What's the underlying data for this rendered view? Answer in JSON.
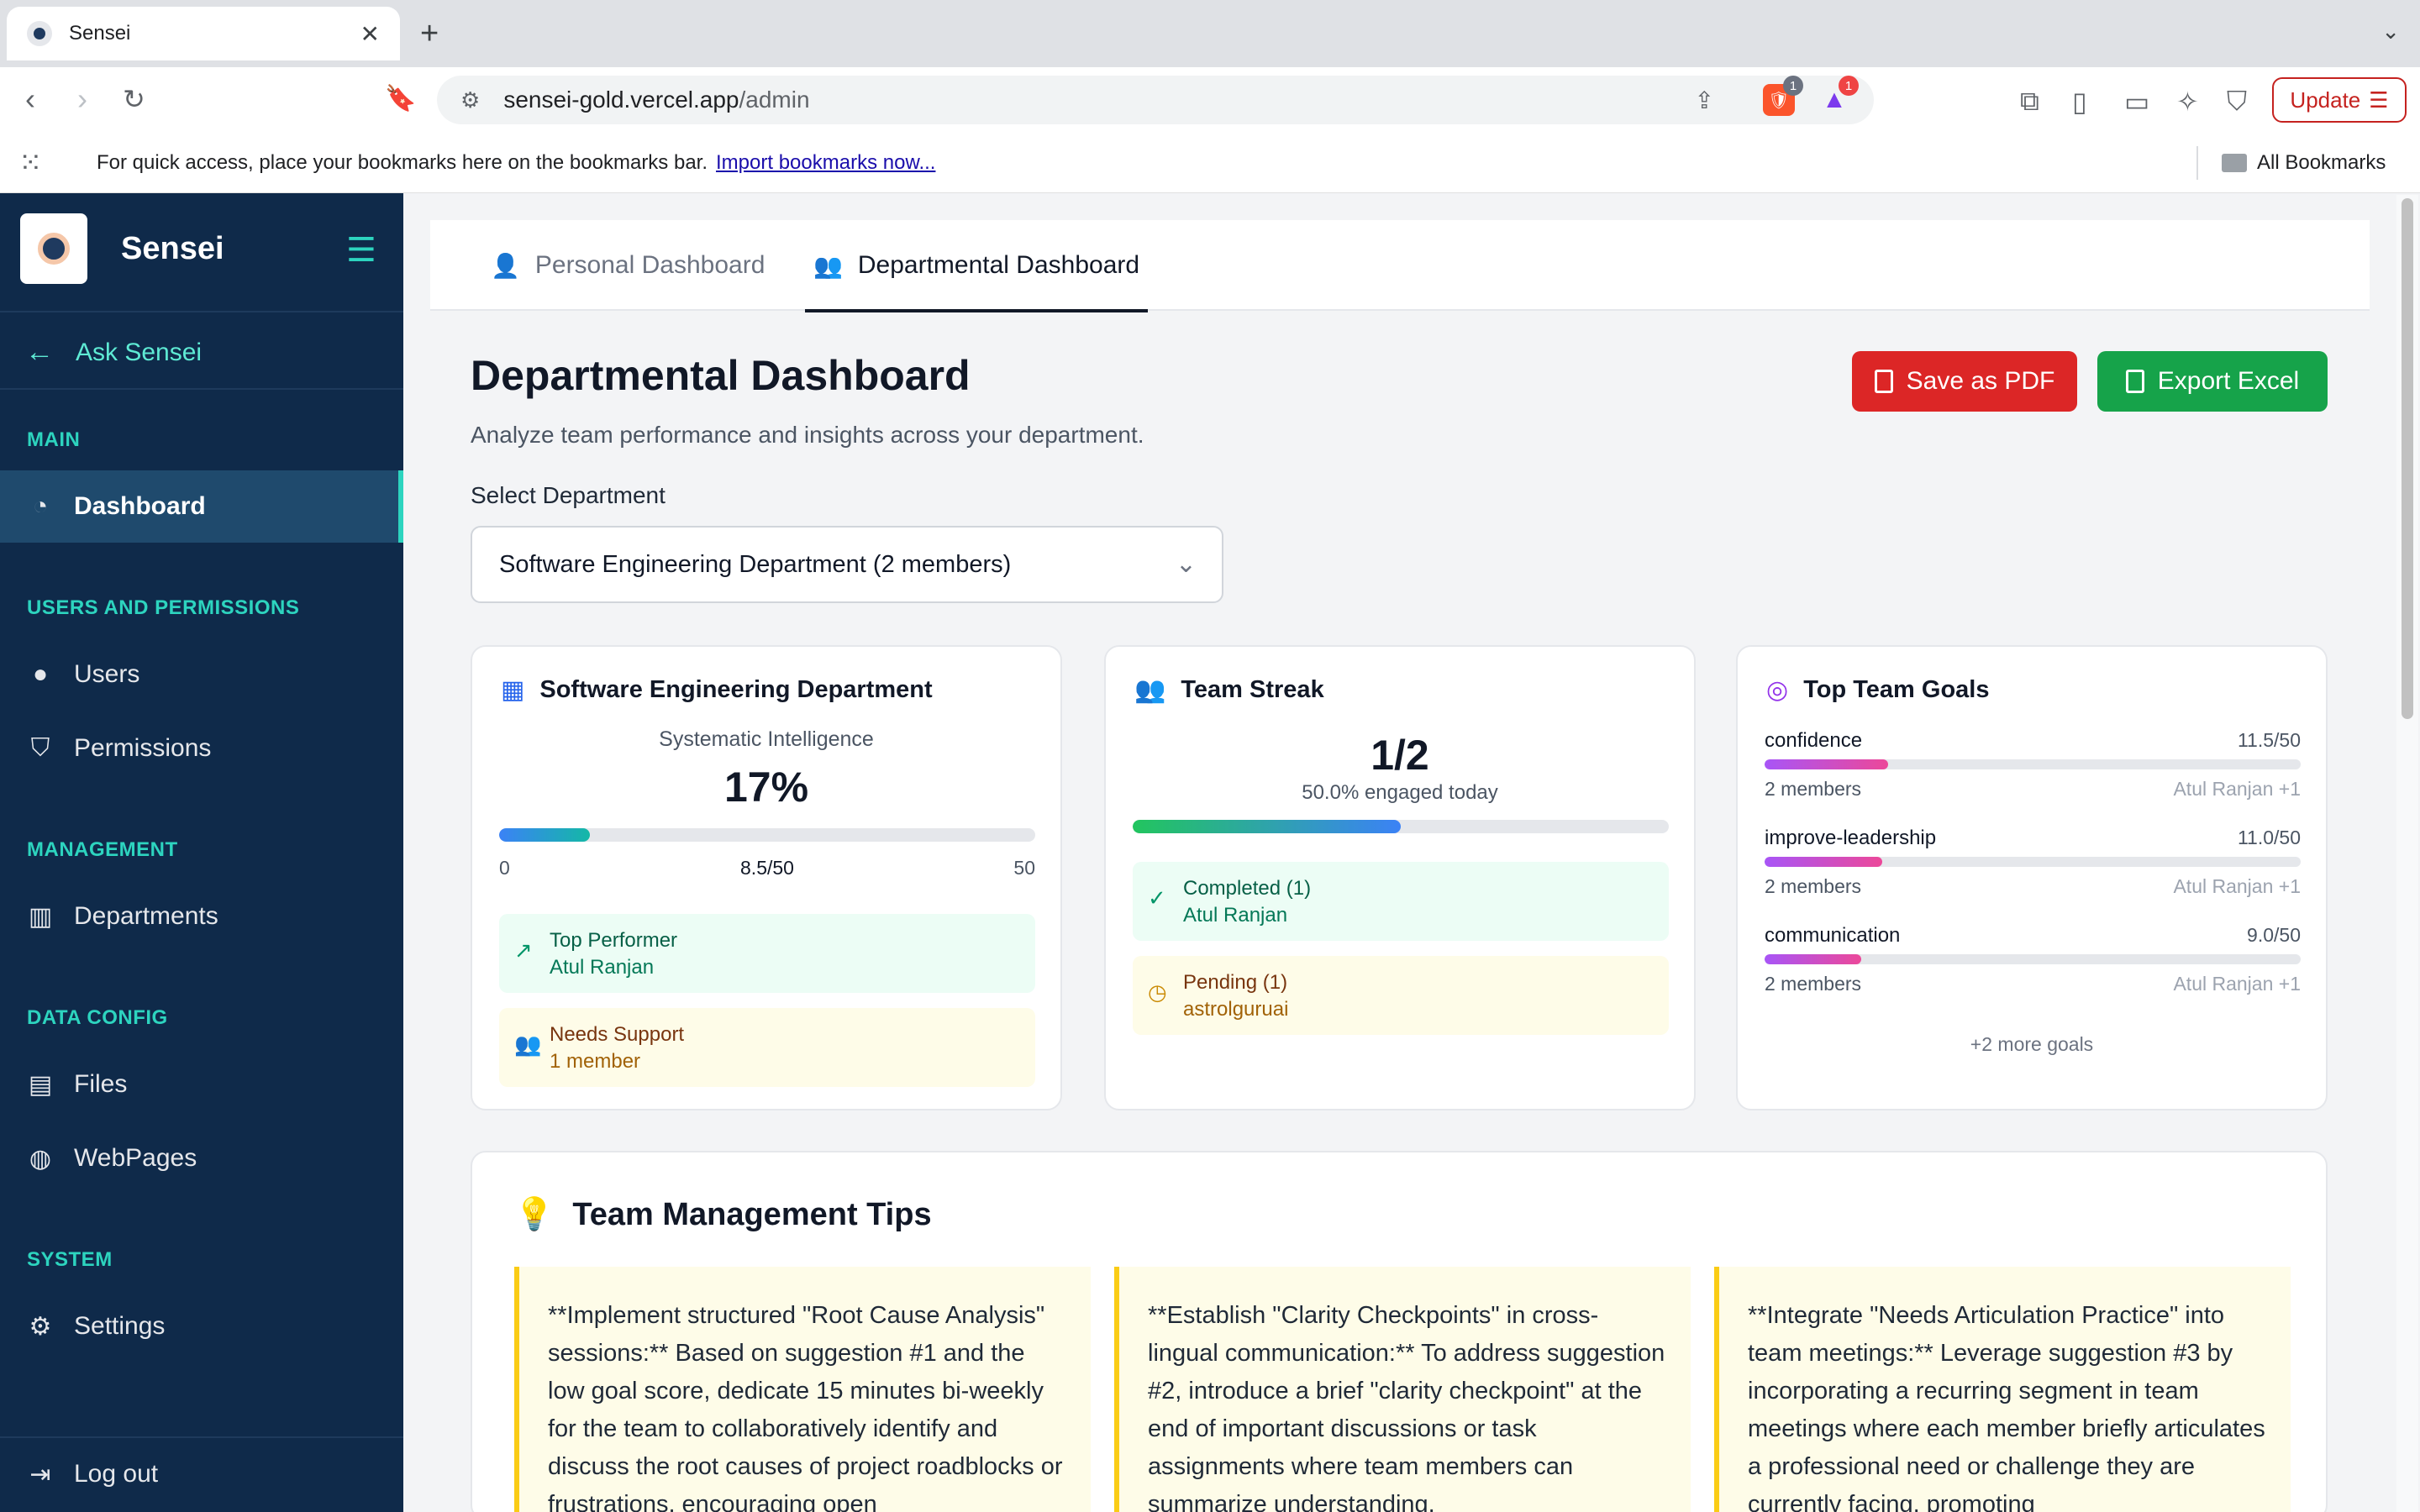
{
  "browser": {
    "tab_title": "Sensei",
    "url_host": "sensei-gold.vercel.app",
    "url_path": "/admin",
    "update_label": "Update",
    "bookmarks_message": "For quick access, place your bookmarks here on the bookmarks bar.",
    "import_link": "Import bookmarks now...",
    "all_bookmarks": "All Bookmarks",
    "brave_badge": "1",
    "rewards_badge": "1"
  },
  "sidebar": {
    "brand": "Sensei",
    "ask": "Ask Sensei",
    "sections": {
      "main": "MAIN",
      "users": "USERS AND PERMISSIONS",
      "management": "MANAGEMENT",
      "data": "DATA CONFIG",
      "system": "SYSTEM"
    },
    "items": {
      "dashboard": "Dashboard",
      "users": "Users",
      "permissions": "Permissions",
      "departments": "Departments",
      "files": "Files",
      "webpages": "WebPages",
      "settings": "Settings",
      "logout": "Log out"
    }
  },
  "tabs": {
    "personal": "Personal Dashboard",
    "departmental": "Departmental Dashboard"
  },
  "page": {
    "title": "Departmental Dashboard",
    "subtitle": "Analyze team performance and insights across your department.",
    "save_pdf": "Save as PDF",
    "export_excel": "Export Excel",
    "select_label": "Select Department",
    "selected_department": "Software Engineering Department (2 members)"
  },
  "dept_card": {
    "title": "Software Engineering Department",
    "metric_label": "Systematic Intelligence",
    "percent": "17%",
    "progress_fraction": 0.17,
    "scale_min": "0",
    "scale_value": "8.5/50",
    "scale_max": "50",
    "top_performer_label": "Top Performer",
    "top_performer_name": "Atul Ranjan",
    "needs_support_label": "Needs Support",
    "needs_support_count": "1 member"
  },
  "streak_card": {
    "title": "Team Streak",
    "ratio": "1/2",
    "engaged": "50.0% engaged today",
    "progress_fraction": 0.5,
    "completed_label": "Completed (1)",
    "completed_name": "Atul Ranjan",
    "pending_label": "Pending (1)",
    "pending_name": "astrolguruai"
  },
  "goals_card": {
    "title": "Top Team Goals",
    "goals": [
      {
        "name": "confidence",
        "score": "11.5/50",
        "fraction": 0.23,
        "members": "2 members",
        "who": "Atul Ranjan +1"
      },
      {
        "name": "improve-leadership",
        "score": "11.0/50",
        "fraction": 0.22,
        "members": "2 members",
        "who": "Atul Ranjan +1"
      },
      {
        "name": "communication",
        "score": "9.0/50",
        "fraction": 0.18,
        "members": "2 members",
        "who": "Atul Ranjan +1"
      }
    ],
    "more": "+2 more goals"
  },
  "tips": {
    "title": "Team Management Tips",
    "items": [
      "**Implement structured \"Root Cause Analysis\" sessions:** Based on suggestion #1 and the low goal score, dedicate 15 minutes bi-weekly for the team to collaboratively identify and discuss the root causes of project roadblocks or frustrations, encouraging open",
      "**Establish \"Clarity Checkpoints\" in cross-lingual communication:** To address suggestion #2, introduce a brief \"clarity checkpoint\" at the end of important discussions or task assignments where team members can summarize understanding,",
      "**Integrate \"Needs Articulation Practice\" into team meetings:** Leverage suggestion #3 by incorporating a recurring segment in team meetings where each member briefly articulates a professional need or challenge they are currently facing, promoting"
    ]
  },
  "colors": {
    "sidebar_bg": "#0f2a4a",
    "accent_teal": "#2dd4bf",
    "pdf_red": "#dc2626",
    "excel_green": "#16a34a"
  }
}
